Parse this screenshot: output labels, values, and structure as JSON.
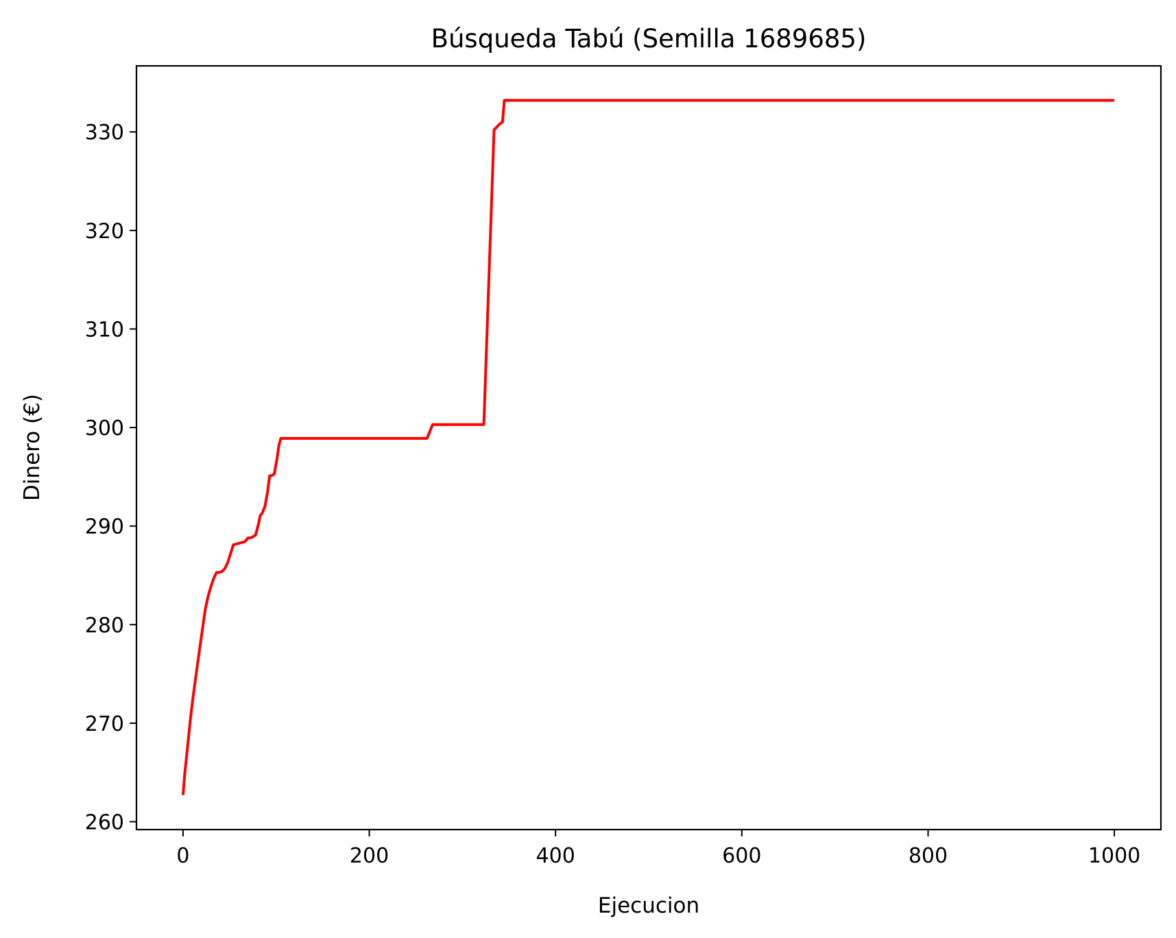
{
  "chart_data": {
    "type": "line",
    "title": "Búsqueda Tabú (Semilla 1689685)",
    "xlabel": "Ejecucion",
    "ylabel": "Dinero (€)",
    "xlim": [
      -50,
      1050
    ],
    "ylim": [
      259.2,
      336.7
    ],
    "xticks": [
      0,
      200,
      400,
      600,
      800,
      1000
    ],
    "xtick_labels": [
      "0",
      "200",
      "400",
      "600",
      "800",
      "1000"
    ],
    "yticks": [
      260,
      270,
      280,
      290,
      300,
      310,
      320,
      330
    ],
    "ytick_labels": [
      "260",
      "270",
      "280",
      "290",
      "300",
      "310",
      "320",
      "330"
    ],
    "grid": false,
    "series": [
      {
        "color": "#ff0000",
        "x": [
          0,
          2,
          5,
          8,
          11,
          15,
          19,
          24,
          27,
          30,
          33,
          36,
          39,
          42,
          45,
          48,
          51,
          54,
          58,
          62,
          66,
          70,
          72,
          75,
          78,
          81,
          83,
          85,
          88,
          91,
          93,
          95,
          98,
          101,
          103,
          105,
          107,
          110,
          130,
          200,
          250,
          262,
          265,
          268,
          280,
          300,
          323,
          334,
          337,
          340,
          343,
          345,
          360,
          400,
          600,
          800,
          1000
        ],
        "y": [
          262.7,
          265.0,
          267.7,
          270.5,
          272.8,
          275.6,
          278.3,
          281.6,
          282.9,
          283.9,
          284.7,
          285.3,
          285.3,
          285.4,
          285.7,
          286.3,
          287.2,
          288.1,
          288.2,
          288.3,
          288.4,
          288.8,
          288.8,
          288.9,
          289.1,
          290.2,
          291.1,
          291.3,
          292.0,
          293.6,
          295.1,
          295.1,
          295.3,
          296.9,
          298.2,
          298.9,
          298.9,
          298.9,
          298.9,
          298.9,
          298.9,
          298.9,
          299.6,
          300.3,
          300.3,
          300.3,
          300.3,
          330.2,
          330.5,
          330.8,
          331.0,
          333.2,
          333.2,
          333.2,
          333.2,
          333.2,
          333.2
        ]
      }
    ]
  }
}
